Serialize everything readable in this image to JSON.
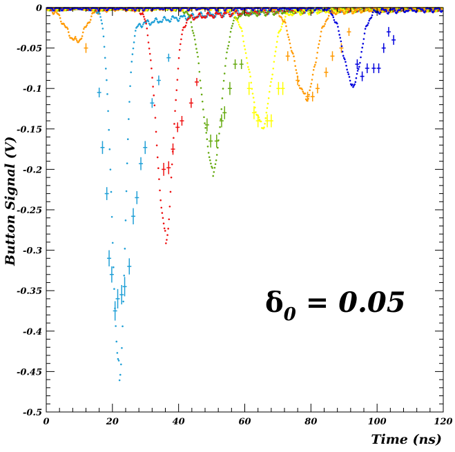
{
  "chart_data": {
    "type": "scatter",
    "xlabel": "Time (ns)",
    "ylabel": "Button Signal (V)",
    "xlim": [
      0,
      120
    ],
    "ylim": [
      -0.5,
      0
    ],
    "xticks": [
      "0",
      "20",
      "40",
      "60",
      "80",
      "100",
      "120"
    ],
    "yticks": [
      "0",
      "-0.05",
      "-0.1",
      "-0.15",
      "-0.2",
      "-0.25",
      "-0.3",
      "-0.35",
      "-0.4",
      "-0.45",
      "-0.5"
    ],
    "annotation": {
      "symbol": "δ",
      "subscript": "0",
      "text": " = 0.05"
    },
    "series": [
      {
        "color": "#ff9900",
        "dip_center": 9,
        "dip_depth": 0.04,
        "dip_width": 3.2,
        "measured": [
          {
            "x": 12.0,
            "y": -0.05,
            "err": 0.006
          }
        ]
      },
      {
        "color": "#1e9fd6",
        "dip_center": 22.0,
        "dip_depth": 0.44,
        "dip_width": 2.1,
        "measured": [
          {
            "x": 16.0,
            "y": -0.105,
            "err": 0.006
          },
          {
            "x": 17.0,
            "y": -0.173,
            "err": 0.008
          },
          {
            "x": 18.3,
            "y": -0.23,
            "err": 0.008
          },
          {
            "x": 19.0,
            "y": -0.31,
            "err": 0.01
          },
          {
            "x": 19.8,
            "y": -0.33,
            "err": 0.01
          },
          {
            "x": 20.8,
            "y": -0.375,
            "err": 0.012
          },
          {
            "x": 21.6,
            "y": -0.36,
            "err": 0.012
          },
          {
            "x": 22.8,
            "y": -0.355,
            "err": 0.012
          },
          {
            "x": 23.7,
            "y": -0.345,
            "err": 0.012
          },
          {
            "x": 25.1,
            "y": -0.32,
            "err": 0.01
          },
          {
            "x": 26.3,
            "y": -0.258,
            "err": 0.01
          },
          {
            "x": 27.4,
            "y": -0.235,
            "err": 0.008
          },
          {
            "x": 28.6,
            "y": -0.193,
            "err": 0.008
          },
          {
            "x": 29.9,
            "y": -0.173,
            "err": 0.008
          },
          {
            "x": 32.0,
            "y": -0.118,
            "err": 0.006
          },
          {
            "x": 34.0,
            "y": -0.09,
            "err": 0.006
          },
          {
            "x": 37.0,
            "y": -0.062,
            "err": 0.005
          }
        ]
      },
      {
        "color": "#ee1111",
        "dip_center": 36.0,
        "dip_depth": 0.275,
        "dip_width": 2.6,
        "measured": [
          {
            "x": 35.5,
            "y": -0.2,
            "err": 0.008
          },
          {
            "x": 37.0,
            "y": -0.198,
            "err": 0.008
          },
          {
            "x": 38.3,
            "y": -0.175,
            "err": 0.007
          },
          {
            "x": 39.7,
            "y": -0.148,
            "err": 0.006
          },
          {
            "x": 41.0,
            "y": -0.14,
            "err": 0.006
          },
          {
            "x": 43.8,
            "y": -0.118,
            "err": 0.006
          },
          {
            "x": 45.5,
            "y": -0.092,
            "err": 0.005
          }
        ]
      },
      {
        "color": "#66aa11",
        "dip_center": 50.3,
        "dip_depth": 0.195,
        "dip_width": 3.0,
        "measured": [
          {
            "x": 48.6,
            "y": -0.145,
            "err": 0.008
          },
          {
            "x": 49.7,
            "y": -0.165,
            "err": 0.008
          },
          {
            "x": 51.5,
            "y": -0.165,
            "err": 0.008
          },
          {
            "x": 53.0,
            "y": -0.14,
            "err": 0.008
          },
          {
            "x": 53.9,
            "y": -0.13,
            "err": 0.008
          },
          {
            "x": 55.5,
            "y": -0.1,
            "err": 0.008
          },
          {
            "x": 57.1,
            "y": -0.07,
            "err": 0.006
          },
          {
            "x": 59.0,
            "y": -0.07,
            "err": 0.006
          }
        ]
      },
      {
        "color": "#ffff00",
        "dip_center": 65.0,
        "dip_depth": 0.142,
        "dip_width": 3.4,
        "measured": [
          {
            "x": 61.3,
            "y": -0.1,
            "err": 0.008
          },
          {
            "x": 62.8,
            "y": -0.13,
            "err": 0.008
          },
          {
            "x": 64.0,
            "y": -0.14,
            "err": 0.008
          },
          {
            "x": 66.8,
            "y": -0.14,
            "err": 0.008
          },
          {
            "x": 68.0,
            "y": -0.14,
            "err": 0.008
          },
          {
            "x": 70.2,
            "y": -0.1,
            "err": 0.008
          },
          {
            "x": 71.5,
            "y": -0.1,
            "err": 0.008
          }
        ]
      },
      {
        "color": "#ff9900",
        "dip_center": 78.3,
        "dip_depth": 0.108,
        "dip_width": 3.4,
        "measured": [
          {
            "x": 73.0,
            "y": -0.06,
            "err": 0.006
          },
          {
            "x": 76.0,
            "y": -0.09,
            "err": 0.006
          },
          {
            "x": 79.0,
            "y": -0.11,
            "err": 0.006
          },
          {
            "x": 80.5,
            "y": -0.11,
            "err": 0.006
          },
          {
            "x": 82.0,
            "y": -0.1,
            "err": 0.006
          },
          {
            "x": 84.6,
            "y": -0.08,
            "err": 0.006
          },
          {
            "x": 86.5,
            "y": -0.06,
            "err": 0.006
          },
          {
            "x": 89.2,
            "y": -0.05,
            "err": 0.006
          },
          {
            "x": 91.5,
            "y": -0.03,
            "err": 0.005
          }
        ]
      },
      {
        "color": "#0000dd",
        "dip_center": 92.6,
        "dip_depth": 0.093,
        "dip_width": 2.8,
        "measured": [
          {
            "x": 94.0,
            "y": -0.07,
            "err": 0.006
          },
          {
            "x": 95.5,
            "y": -0.085,
            "err": 0.006
          },
          {
            "x": 97.0,
            "y": -0.075,
            "err": 0.006
          },
          {
            "x": 99.0,
            "y": -0.075,
            "err": 0.006
          },
          {
            "x": 100.5,
            "y": -0.075,
            "err": 0.006
          },
          {
            "x": 102.0,
            "y": -0.05,
            "err": 0.006
          },
          {
            "x": 103.5,
            "y": -0.03,
            "err": 0.006
          },
          {
            "x": 105.0,
            "y": -0.04,
            "err": 0.006
          }
        ]
      }
    ]
  }
}
